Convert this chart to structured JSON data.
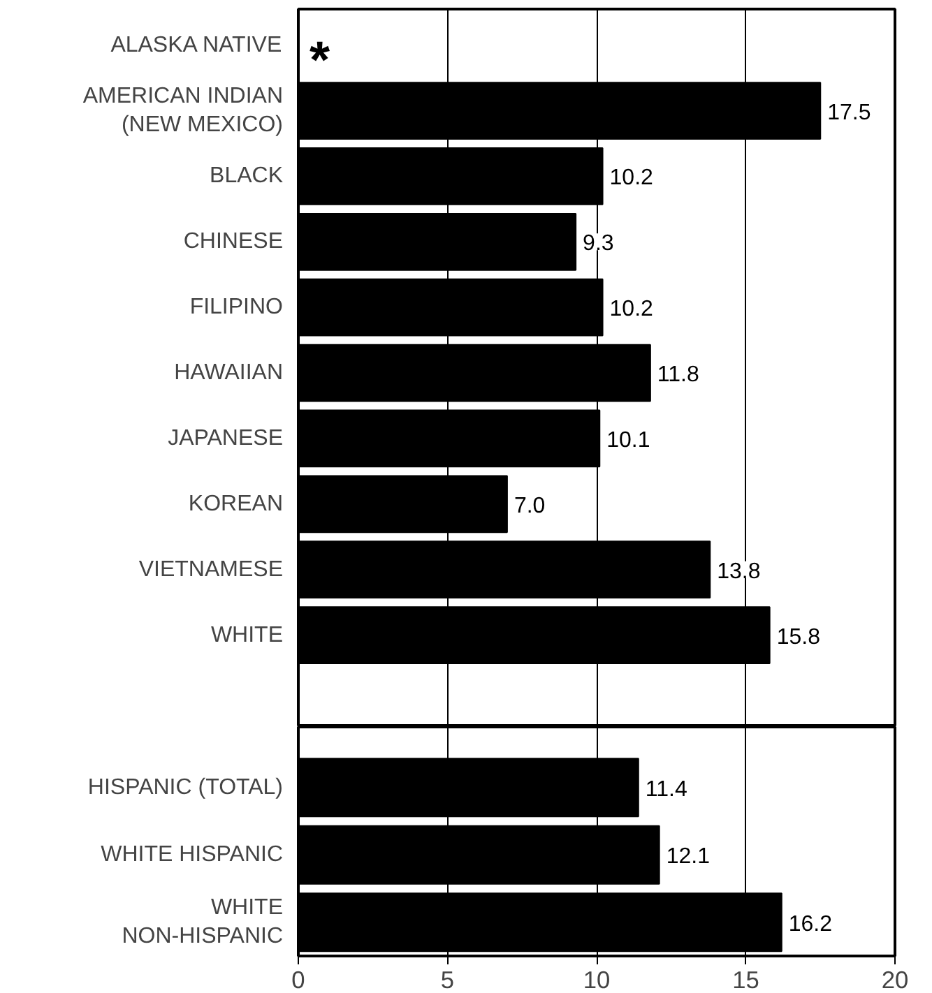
{
  "chart_data": [
    {
      "type": "bar",
      "orientation": "horizontal",
      "categories": [
        "ALASKA NATIVE",
        "AMERICAN INDIAN\n(NEW MEXICO)",
        "BLACK",
        "CHINESE",
        "FILIPINO",
        "HAWAIIAN",
        "JAPANESE",
        "KOREAN",
        "VIETNAMESE",
        "WHITE"
      ],
      "values": [
        null,
        17.5,
        10.2,
        9.3,
        10.2,
        11.8,
        10.1,
        7.0,
        13.8,
        15.8
      ],
      "value_labels": [
        null,
        "17.5",
        "10.2",
        "9.3",
        "10.2",
        "11.8",
        "10.1",
        "7.0",
        "13.8",
        "15.8"
      ],
      "color": "#000000",
      "xlim": [
        0,
        20
      ],
      "xticks": [
        0,
        5,
        10,
        15,
        20
      ],
      "grid": "x",
      "tick_labels": "y",
      "annotations": [
        "*"
      ]
    },
    {
      "type": "bar",
      "orientation": "horizontal",
      "categories": [
        "HISPANIC (TOTAL)",
        "WHITE HISPANIC",
        "WHITE\nNON-HISPANIC"
      ],
      "values": [
        11.4,
        12.1,
        16.2
      ],
      "value_labels": [
        "11.4",
        "12.1",
        "16.2"
      ],
      "color": "#000000",
      "xlim": [
        0,
        20
      ],
      "xticks": [
        0,
        5,
        10,
        15,
        20
      ],
      "grid": "x"
    }
  ]
}
